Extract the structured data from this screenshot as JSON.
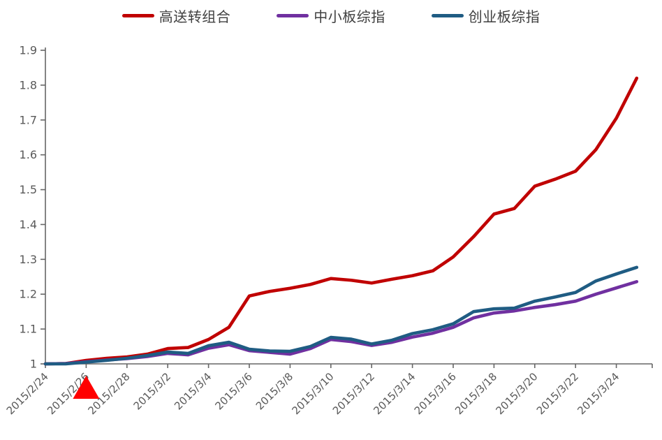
{
  "chart_data": {
    "type": "line",
    "title": "",
    "xlabel": "",
    "ylabel": "",
    "grid": false,
    "legend_position": "top-center",
    "axis_color": "#666666",
    "tick_label_color": "#595959",
    "ylim": [
      1.0,
      1.9
    ],
    "y_tick_labels": [
      "1",
      "1.1",
      "1.2",
      "1.3",
      "1.4",
      "1.5",
      "1.6",
      "1.7",
      "1.8",
      "1.9"
    ],
    "x": [
      "2015/2/24",
      "2015/2/25",
      "2015/2/26",
      "2015/2/27",
      "2015/2/28",
      "2015/3/1",
      "2015/3/2",
      "2015/3/3",
      "2015/3/4",
      "2015/3/5",
      "2015/3/6",
      "2015/3/7",
      "2015/3/8",
      "2015/3/9",
      "2015/3/10",
      "2015/3/11",
      "2015/3/12",
      "2015/3/13",
      "2015/3/14",
      "2015/3/15",
      "2015/3/16",
      "2015/3/17",
      "2015/3/18",
      "2015/3/19",
      "2015/3/20",
      "2015/3/21",
      "2015/3/22",
      "2015/3/23",
      "2015/3/24",
      "2015/3/25"
    ],
    "x_tick_every": 2,
    "x_tick_labels": [
      "2015/2/24",
      "2015/2/26",
      "2015/2/28",
      "2015/3/2",
      "2015/3/4",
      "2015/3/6",
      "2015/3/8",
      "2015/3/10",
      "2015/3/12",
      "2015/3/14",
      "2015/3/16",
      "2015/3/18",
      "2015/3/20",
      "2015/3/22",
      "2015/3/24"
    ],
    "series": [
      {
        "name": "高送转组合",
        "color": "#C00000",
        "values": [
          1.0,
          1.001,
          1.01,
          1.016,
          1.02,
          1.028,
          1.044,
          1.047,
          1.07,
          1.105,
          1.195,
          1.208,
          1.217,
          1.228,
          1.245,
          1.24,
          1.232,
          1.243,
          1.253,
          1.267,
          1.307,
          1.365,
          1.43,
          1.446,
          1.51,
          1.53,
          1.553,
          1.615,
          1.705,
          1.82
        ]
      },
      {
        "name": "中小板综指",
        "color": "#7030A0",
        "values": [
          1.0,
          1.001,
          1.006,
          1.011,
          1.015,
          1.021,
          1.03,
          1.026,
          1.045,
          1.055,
          1.038,
          1.033,
          1.028,
          1.044,
          1.07,
          1.064,
          1.053,
          1.062,
          1.077,
          1.088,
          1.105,
          1.132,
          1.146,
          1.152,
          1.162,
          1.17,
          1.18,
          1.2,
          1.218,
          1.236
        ]
      },
      {
        "name": "创业板综指",
        "color": "#1F5C83",
        "values": [
          1.0,
          1.0,
          1.005,
          1.01,
          1.016,
          1.024,
          1.034,
          1.03,
          1.052,
          1.062,
          1.042,
          1.037,
          1.036,
          1.05,
          1.076,
          1.071,
          1.057,
          1.068,
          1.087,
          1.098,
          1.115,
          1.15,
          1.158,
          1.16,
          1.18,
          1.192,
          1.205,
          1.238,
          1.258,
          1.277
        ]
      }
    ],
    "annotations": [
      {
        "shape": "triangle-up",
        "color": "#FF0000",
        "at_x": "2015/2/26",
        "x_index": 2,
        "position": "below-x-axis"
      }
    ]
  }
}
